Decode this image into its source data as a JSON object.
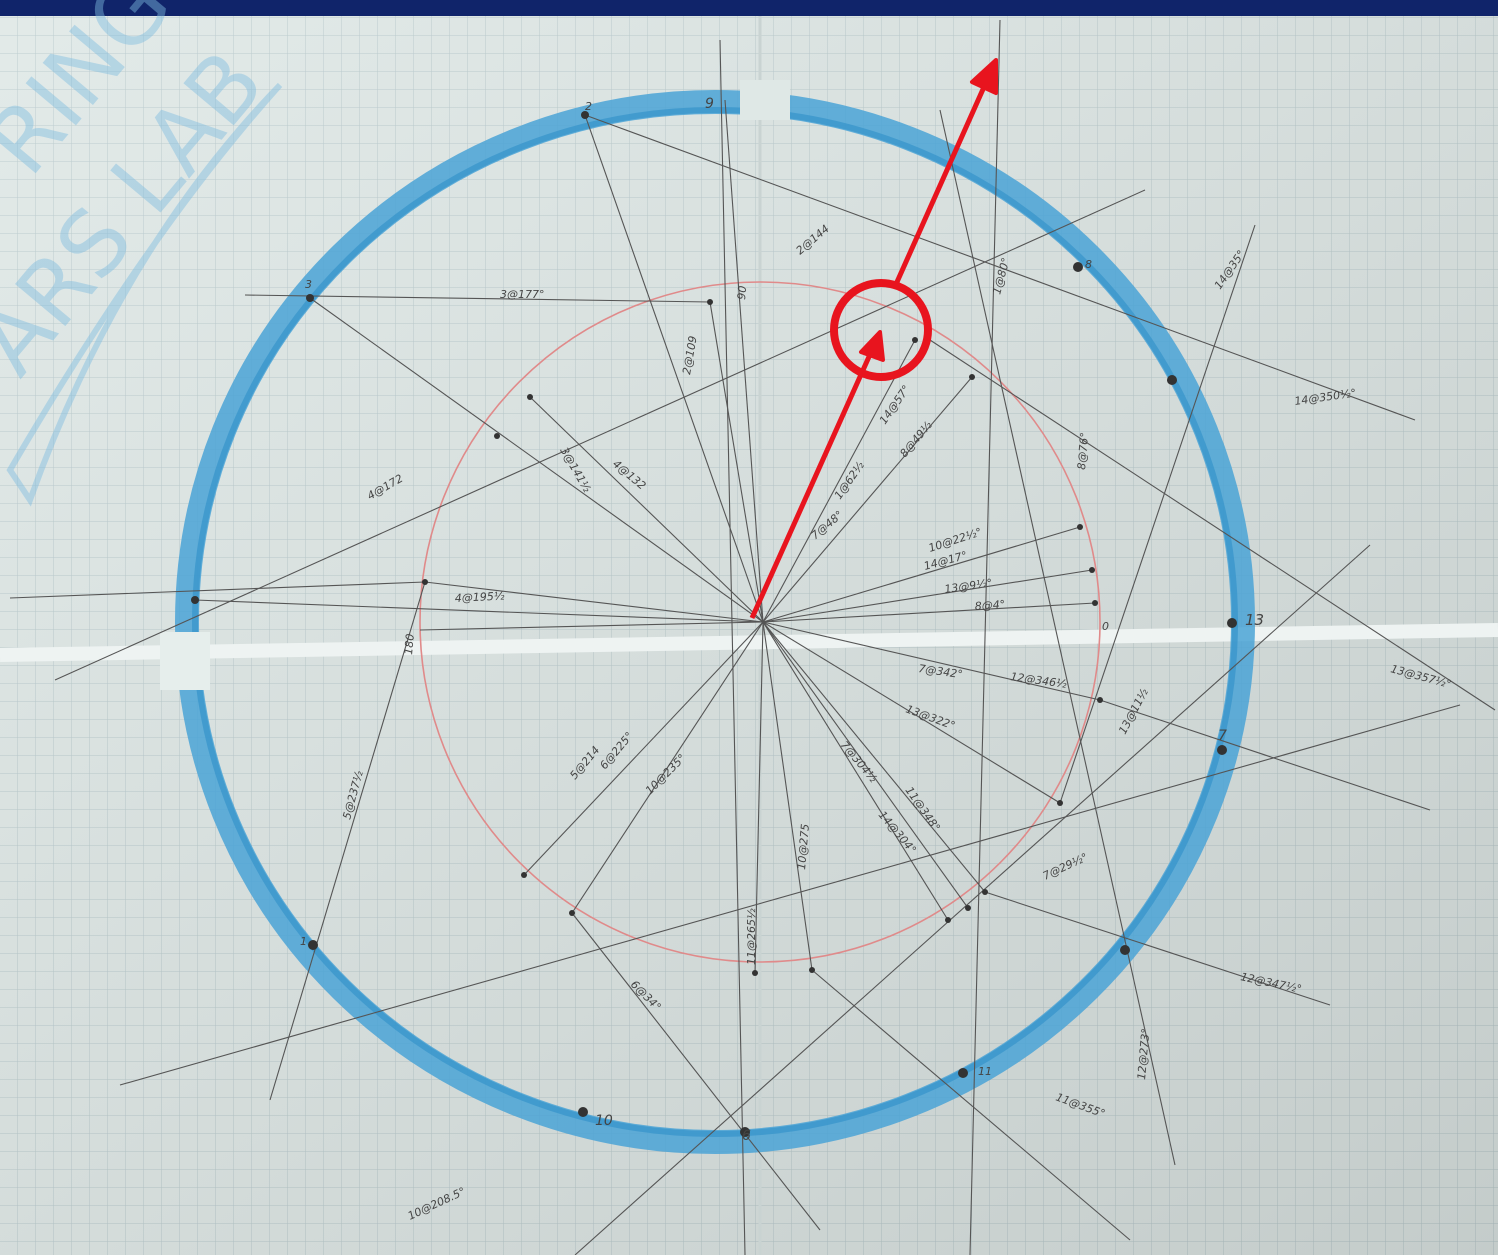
{
  "watermark": {
    "line1": "RING",
    "line2": "ARS LAB"
  },
  "labels": [
    "3@177°",
    "2@144",
    "1@80°",
    "14@35°",
    "14@350½°",
    "8@76°",
    "13@357½°",
    "13",
    "7",
    "12@347½°",
    "11@355°",
    "11",
    "12@273°",
    "10@208.5°",
    "6",
    "6@34°",
    "10@275",
    "11@265½",
    "5@214",
    "6@225°",
    "10@235°",
    "5@237½",
    "4@195½",
    "4@132",
    "3@141½",
    "4@172",
    "180",
    "0",
    "90",
    "2@109",
    "8@49½",
    "14@57°",
    "1@62½",
    "7@48°",
    "10@22½°",
    "14@17°",
    "13@9½°",
    "8@4°",
    "7@342°",
    "12@346½",
    "13@322°",
    "7@304½",
    "11@348°",
    "14@304°",
    "7@29½°",
    "13@11½",
    "3",
    "2",
    "9",
    "8",
    "1",
    "10"
  ]
}
